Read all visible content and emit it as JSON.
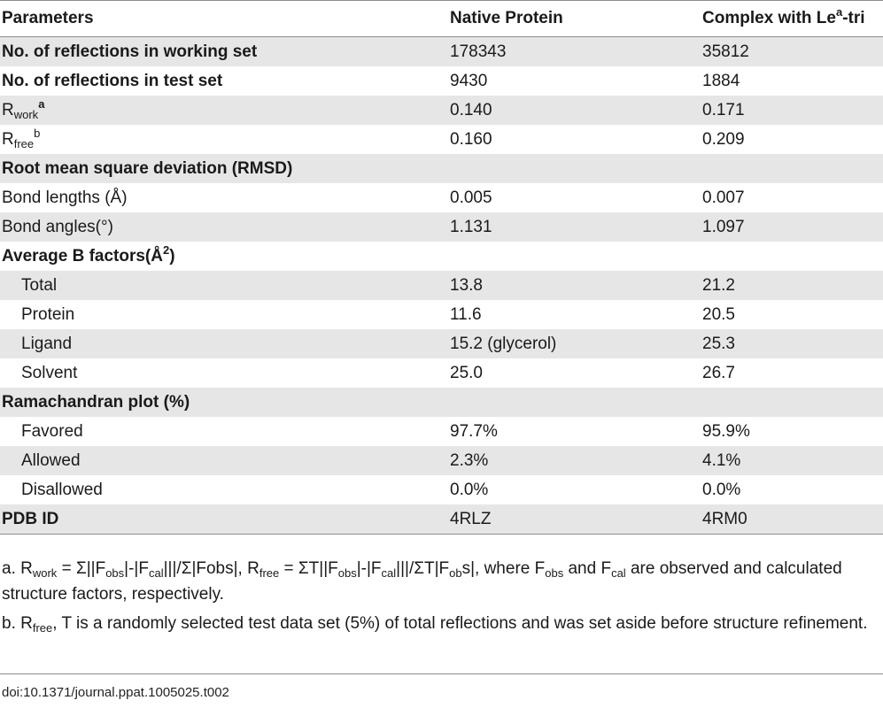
{
  "header": {
    "parameters": "Parameters",
    "native": "Native Protein",
    "complex_prefix": "Complex with Le",
    "complex_sup": "a",
    "complex_suffix": "-tri"
  },
  "rows": {
    "r1": {
      "label": "No. of reflections in working set",
      "native": "178343",
      "complex": "35812"
    },
    "r2": {
      "label": "No. of reflections in test set",
      "native": "9430",
      "complex": "1884"
    },
    "r3": {
      "label_main": "R",
      "label_sub": "work",
      "label_sup": "a",
      "native": "0.140",
      "complex": "0.171"
    },
    "r4": {
      "label_main": "R",
      "label_sub": "free",
      "label_sup": "b",
      "native": "0.160",
      "complex": "0.209"
    },
    "r5": {
      "label": "Root mean square deviation (RMSD)"
    },
    "r6": {
      "label": "Bond lengths (Å)",
      "native": "0.005",
      "complex": "0.007"
    },
    "r7": {
      "label": "Bond angles(°)",
      "native": "1.131",
      "complex": "1.097"
    },
    "r8": {
      "label_prefix": "Average B factors(Å",
      "label_sup": "2",
      "label_suffix": ")"
    },
    "r9": {
      "label": "Total",
      "native": "13.8",
      "complex": "21.2"
    },
    "r10": {
      "label": "Protein",
      "native": "11.6",
      "complex": "20.5"
    },
    "r11": {
      "label": "Ligand",
      "native": "15.2 (glycerol)",
      "complex": "25.3"
    },
    "r12": {
      "label": "Solvent",
      "native": "25.0",
      "complex": "26.7"
    },
    "r13": {
      "label": "Ramachandran plot (%)"
    },
    "r14": {
      "label": "Favored",
      "native": "97.7%",
      "complex": "95.9%"
    },
    "r15": {
      "label": "Allowed",
      "native": "2.3%",
      "complex": "4.1%"
    },
    "r16": {
      "label": "Disallowed",
      "native": "0.0%",
      "complex": "0.0%"
    },
    "r17": {
      "label": "PDB ID",
      "native": "4RLZ",
      "complex": "4RM0"
    }
  },
  "footnotes": {
    "a": {
      "t1": "a. R",
      "s1": "work",
      "t2": " = Σ||F",
      "s2": "obs",
      "t3": "|-|F",
      "s3": "cal",
      "t4": "|||/Σ|Fobs|, R",
      "s4": "free",
      "t5": " = ΣT||F",
      "s5": "obs",
      "t6": "|-|F",
      "s6": "cal",
      "t7": "|||/ΣT|F",
      "s7": "ob",
      "t8": "s|, where F",
      "s8": "obs",
      "t9": " and F",
      "s9": "cal",
      "t10": " are observed and calculated structure factors, respectively."
    },
    "b": {
      "t1": "b. R",
      "s1": "free",
      "t2": ", T is a randomly selected test data set (5%) of total reflections and was set aside before structure refinement."
    }
  },
  "doi": "doi:10.1371/journal.ppat.1005025.t002"
}
